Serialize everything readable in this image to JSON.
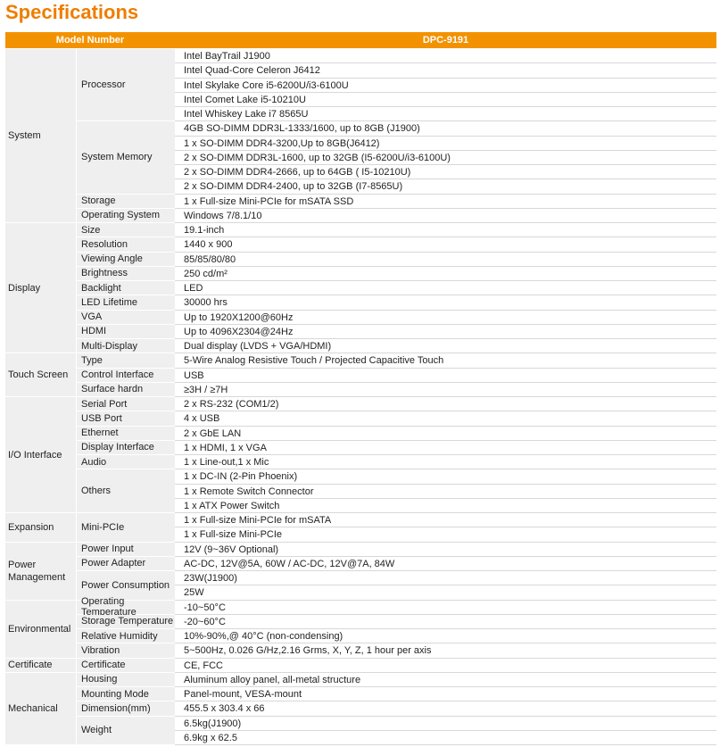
{
  "header": {
    "title": "Specifications",
    "model_label": "Model Number",
    "model": "DPC-9191"
  },
  "groups": [
    {
      "category": "System",
      "items": [
        {
          "label": "Processor",
          "lines": [
            "Intel BayTrail J1900",
            "Intel Quad-Core Celeron J6412",
            "Intel Skylake Core i5-6200U/i3-6100U",
            "Intel Comet Lake i5-10210U",
            "Intel Whiskey Lake i7 8565U"
          ]
        },
        {
          "label": "System Memory",
          "lines": [
            "4GB SO-DIMM DDR3L-1333/1600, up  to 8GB (J1900)",
            "1 x SO-DIMM DDR4-3200,Up to 8GB(J6412)",
            "2 x SO-DIMM DDR3L-1600, up  to 32GB (I5-6200U/i3-6100U)",
            "2 x SO-DIMM DDR4-2666, up to 64GB ( I5-10210U)",
            "2 x SO-DIMM DDR4-2400, up to 32GB (I7-8565U)"
          ]
        },
        {
          "label": "Storage",
          "lines": [
            "1 x Full-size Mini-PCIe for mSATA SSD"
          ]
        },
        {
          "label": "Operating System",
          "lines": [
            "Windows 7/8.1/10"
          ]
        }
      ]
    },
    {
      "category": "Display",
      "items": [
        {
          "label": "Size",
          "lines": [
            "19.1-inch"
          ]
        },
        {
          "label": "Resolution",
          "lines": [
            "1440 x 900"
          ]
        },
        {
          "label": "Viewing Angle",
          "lines": [
            "85/85/80/80"
          ]
        },
        {
          "label": "Brightness",
          "lines": [
            "250 cd/m²"
          ]
        },
        {
          "label": "Backlight",
          "lines": [
            "LED"
          ]
        },
        {
          "label": "LED Lifetime",
          "lines": [
            "30000 hrs"
          ]
        },
        {
          "label": "VGA",
          "lines": [
            "Up to 1920X1200@60Hz"
          ]
        },
        {
          "label": "HDMI",
          "lines": [
            "Up to 4096X2304@24Hz"
          ]
        },
        {
          "label": "Multi-Display",
          "lines": [
            "Dual display (LVDS + VGA/HDMI)"
          ]
        }
      ]
    },
    {
      "category": "Touch Screen",
      "items": [
        {
          "label": "Type",
          "lines": [
            "5-Wire Analog Resistive Touch / Projected Capacitive Touch"
          ]
        },
        {
          "label": "Control Interface",
          "lines": [
            "USB"
          ]
        },
        {
          "label": "Surface hardn",
          "lines": [
            "≥3H / ≥7H"
          ]
        }
      ]
    },
    {
      "category": "I/O Interface",
      "items": [
        {
          "label": "Serial Port",
          "lines": [
            "2 x RS-232 (COM1/2)"
          ]
        },
        {
          "label": "USB Port",
          "lines": [
            "4 x USB"
          ]
        },
        {
          "label": "Ethernet",
          "lines": [
            "2 x GbE LAN"
          ]
        },
        {
          "label": "Display Interface",
          "lines": [
            "1 x HDMI, 1 x VGA"
          ]
        },
        {
          "label": "Audio",
          "lines": [
            "1 x Line-out,1 x Mic"
          ]
        },
        {
          "label": "Others",
          "lines": [
            "1 x DC-IN (2-Pin Phoenix)",
            "1 x Remote Switch Connector",
            "1 x ATX Power Switch"
          ]
        }
      ]
    },
    {
      "category": "Expansion",
      "items": [
        {
          "label": "Mini-PCIe",
          "lines": [
            "1 x Full-size Mini-PCIe for mSATA",
            "1 x Full-size Mini-PCIe"
          ]
        }
      ]
    },
    {
      "category": "Power Management",
      "items": [
        {
          "label": "Power Input",
          "lines": [
            "12V (9~36V Optional)"
          ]
        },
        {
          "label": "Power Adapter",
          "lines": [
            "AC-DC, 12V@5A, 60W / AC-DC, 12V@7A, 84W"
          ]
        },
        {
          "label": "Power Consumption",
          "lines": [
            "23W(J1900)",
            "25W"
          ]
        }
      ]
    },
    {
      "category": "Environmental",
      "items": [
        {
          "label": "Operating Temperature",
          "lines": [
            "-10~50°C"
          ]
        },
        {
          "label": "Storage Temperature",
          "lines": [
            "-20~60°C"
          ]
        },
        {
          "label": "Relative Humidity",
          "lines": [
            "10%-90%,@ 40°C (non-condensing)"
          ]
        },
        {
          "label": "Vibration",
          "lines": [
            "5~500Hz, 0.026 G/Hz,2.16 Grms, X, Y, Z, 1 hour per axis"
          ]
        }
      ]
    },
    {
      "category": "Certificate",
      "items": [
        {
          "label": "Certificate",
          "lines": [
            "CE, FCC"
          ]
        }
      ]
    },
    {
      "category": "Mechanical",
      "items": [
        {
          "label": "Housing",
          "lines": [
            "Aluminum alloy panel, all-metal structure"
          ]
        },
        {
          "label": "Mounting Mode",
          "lines": [
            "Panel-mount, VESA-mount"
          ]
        },
        {
          "label": "Dimension(mm)",
          "lines": [
            "455.5 x 303.4 x 66"
          ]
        },
        {
          "label": "Weight",
          "lines": [
            "6.5kg(J1900)",
            "6.9kg x 62.5"
          ]
        }
      ]
    }
  ]
}
